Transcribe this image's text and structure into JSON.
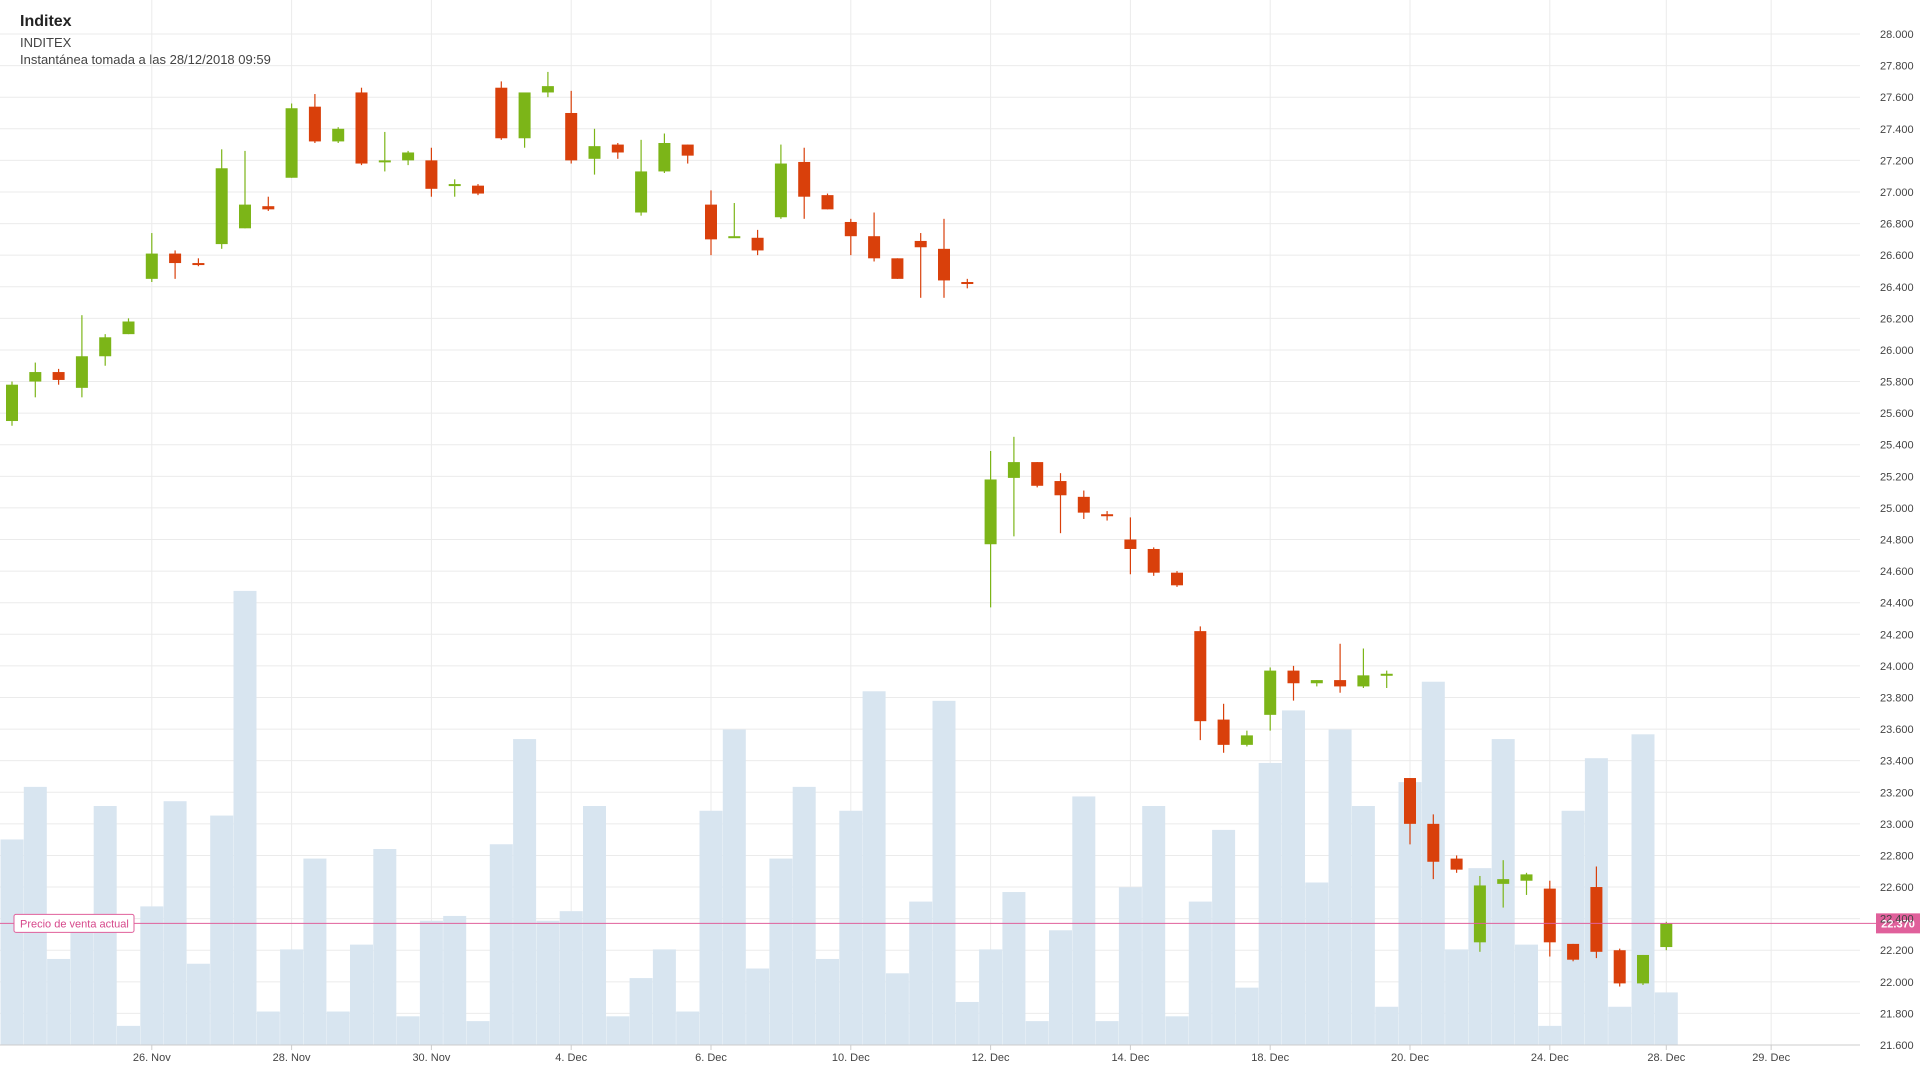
{
  "header": {
    "name": "Inditex",
    "symbol": "INDITEX",
    "snapshot": "Instantánea tomada a las 28/12/2018 09:59"
  },
  "colors": {
    "up": "#7cb518",
    "down": "#d9400b",
    "volume": "#d8e5f0",
    "grid": "#ebebeb",
    "current_price": "#e0609b"
  },
  "chart_data": {
    "type": "candlestick",
    "y_axis": {
      "min": 21.6,
      "max": 28.0,
      "ticks": [
        "28.000",
        "27.800",
        "27.600",
        "27.400",
        "27.200",
        "27.000",
        "26.800",
        "26.600",
        "26.400",
        "26.200",
        "26.000",
        "25.800",
        "25.600",
        "25.400",
        "25.200",
        "25.000",
        "24.800",
        "24.600",
        "24.400",
        "24.200",
        "24.000",
        "23.800",
        "23.600",
        "23.400",
        "23.200",
        "23.000",
        "22.800",
        "22.600",
        "22.400",
        "22.200",
        "22.000",
        "21.800",
        "21.600"
      ]
    },
    "x_axis": {
      "labels": [
        {
          "label": "26. Nov",
          "slot": 6
        },
        {
          "label": "28. Nov",
          "slot": 12
        },
        {
          "label": "30. Nov",
          "slot": 18
        },
        {
          "label": "4. Dec",
          "slot": 24
        },
        {
          "label": "6. Dec",
          "slot": 30
        },
        {
          "label": "10. Dec",
          "slot": 36
        },
        {
          "label": "12. Dec",
          "slot": 42
        },
        {
          "label": "14. Dec",
          "slot": 48
        },
        {
          "label": "18. Dec",
          "slot": 54
        },
        {
          "label": "20. Dec",
          "slot": 60
        },
        {
          "label": "24. Dec",
          "slot": 66
        },
        {
          "label": "28. Dec",
          "slot": 71
        },
        {
          "label": "29. Dec",
          "slot": 75.5
        }
      ]
    },
    "current_price": {
      "value": 22.37,
      "label": "22.370",
      "caption": "Precio de venta actual"
    },
    "volume_max": 1.0,
    "candles": [
      {
        "slot": 0,
        "o": 25.55,
        "h": 25.8,
        "l": 25.52,
        "c": 25.78
      },
      {
        "slot": 1,
        "o": 25.8,
        "h": 25.92,
        "l": 25.7,
        "c": 25.86
      },
      {
        "slot": 2,
        "o": 25.86,
        "h": 25.88,
        "l": 25.78,
        "c": 25.81
      },
      {
        "slot": 3,
        "o": 25.76,
        "h": 26.22,
        "l": 25.7,
        "c": 25.96
      },
      {
        "slot": 4,
        "o": 25.96,
        "h": 26.1,
        "l": 25.9,
        "c": 26.08
      },
      {
        "slot": 5,
        "o": 26.1,
        "h": 26.2,
        "l": 26.1,
        "c": 26.18
      },
      {
        "slot": 6,
        "o": 26.45,
        "h": 26.74,
        "l": 26.43,
        "c": 26.61
      },
      {
        "slot": 7,
        "o": 26.61,
        "h": 26.63,
        "l": 26.45,
        "c": 26.55
      },
      {
        "slot": 8,
        "o": 26.55,
        "h": 26.58,
        "l": 26.53,
        "c": 26.54
      },
      {
        "slot": 9,
        "o": 26.67,
        "h": 27.27,
        "l": 26.64,
        "c": 27.15
      },
      {
        "slot": 10,
        "o": 26.77,
        "h": 27.26,
        "l": 26.77,
        "c": 26.92
      },
      {
        "slot": 11,
        "o": 26.91,
        "h": 26.97,
        "l": 26.88,
        "c": 26.89
      },
      {
        "slot": 12,
        "o": 27.09,
        "h": 27.56,
        "l": 27.09,
        "c": 27.53
      },
      {
        "slot": 13,
        "o": 27.54,
        "h": 27.62,
        "l": 27.31,
        "c": 27.32
      },
      {
        "slot": 14,
        "o": 27.32,
        "h": 27.41,
        "l": 27.31,
        "c": 27.4
      },
      {
        "slot": 15,
        "o": 27.63,
        "h": 27.66,
        "l": 27.17,
        "c": 27.18
      },
      {
        "slot": 16,
        "o": 27.19,
        "h": 27.38,
        "l": 27.13,
        "c": 27.2
      },
      {
        "slot": 17,
        "o": 27.2,
        "h": 27.26,
        "l": 27.17,
        "c": 27.25
      },
      {
        "slot": 18,
        "o": 27.2,
        "h": 27.28,
        "l": 26.97,
        "c": 27.02
      },
      {
        "slot": 19,
        "o": 27.04,
        "h": 27.08,
        "l": 26.97,
        "c": 27.05
      },
      {
        "slot": 20,
        "o": 27.04,
        "h": 27.05,
        "l": 26.98,
        "c": 26.99
      },
      {
        "slot": 21,
        "o": 27.66,
        "h": 27.7,
        "l": 27.33,
        "c": 27.34
      },
      {
        "slot": 22,
        "o": 27.34,
        "h": 27.62,
        "l": 27.28,
        "c": 27.63
      },
      {
        "slot": 23,
        "o": 27.63,
        "h": 27.76,
        "l": 27.6,
        "c": 27.67
      },
      {
        "slot": 24,
        "o": 27.5,
        "h": 27.64,
        "l": 27.18,
        "c": 27.2
      },
      {
        "slot": 25,
        "o": 27.21,
        "h": 27.4,
        "l": 27.11,
        "c": 27.29
      },
      {
        "slot": 26,
        "o": 27.3,
        "h": 27.31,
        "l": 27.21,
        "c": 27.25
      },
      {
        "slot": 27,
        "o": 26.87,
        "h": 27.33,
        "l": 26.85,
        "c": 27.13
      },
      {
        "slot": 28,
        "o": 27.13,
        "h": 27.37,
        "l": 27.12,
        "c": 27.31
      },
      {
        "slot": 29,
        "o": 27.3,
        "h": 27.3,
        "l": 27.18,
        "c": 27.23
      },
      {
        "slot": 30,
        "o": 26.92,
        "h": 27.01,
        "l": 26.6,
        "c": 26.7
      },
      {
        "slot": 31,
        "o": 26.71,
        "h": 26.93,
        "l": 26.71,
        "c": 26.72
      },
      {
        "slot": 32,
        "o": 26.71,
        "h": 26.76,
        "l": 26.6,
        "c": 26.63
      },
      {
        "slot": 33,
        "o": 26.84,
        "h": 27.3,
        "l": 26.83,
        "c": 27.18
      },
      {
        "slot": 34,
        "o": 27.19,
        "h": 27.28,
        "l": 26.83,
        "c": 26.97
      },
      {
        "slot": 35,
        "o": 26.98,
        "h": 26.99,
        "l": 26.89,
        "c": 26.89
      },
      {
        "slot": 36,
        "o": 26.81,
        "h": 26.83,
        "l": 26.6,
        "c": 26.72
      },
      {
        "slot": 37,
        "o": 26.72,
        "h": 26.87,
        "l": 26.56,
        "c": 26.58
      },
      {
        "slot": 38,
        "o": 26.58,
        "h": 26.58,
        "l": 26.45,
        "c": 26.45
      },
      {
        "slot": 39,
        "o": 26.69,
        "h": 26.74,
        "l": 26.33,
        "c": 26.65
      },
      {
        "slot": 40,
        "o": 26.64,
        "h": 26.83,
        "l": 26.33,
        "c": 26.44
      },
      {
        "slot": 41,
        "o": 26.43,
        "h": 26.45,
        "l": 26.39,
        "c": 26.42
      },
      {
        "slot": 42,
        "o": 24.77,
        "h": 25.36,
        "l": 24.37,
        "c": 25.18
      },
      {
        "slot": 43,
        "o": 25.19,
        "h": 25.45,
        "l": 24.82,
        "c": 25.29
      },
      {
        "slot": 44,
        "o": 25.29,
        "h": 25.29,
        "l": 25.13,
        "c": 25.14
      },
      {
        "slot": 45,
        "o": 25.17,
        "h": 25.22,
        "l": 24.84,
        "c": 25.08
      },
      {
        "slot": 46,
        "o": 25.07,
        "h": 25.11,
        "l": 24.93,
        "c": 24.97
      },
      {
        "slot": 47,
        "o": 24.96,
        "h": 24.98,
        "l": 24.92,
        "c": 24.95
      },
      {
        "slot": 48,
        "o": 24.8,
        "h": 24.94,
        "l": 24.58,
        "c": 24.74
      },
      {
        "slot": 49,
        "o": 24.74,
        "h": 24.75,
        "l": 24.57,
        "c": 24.59
      },
      {
        "slot": 50,
        "o": 24.59,
        "h": 24.6,
        "l": 24.5,
        "c": 24.51
      },
      {
        "slot": 51,
        "o": 24.22,
        "h": 24.25,
        "l": 23.53,
        "c": 23.65
      },
      {
        "slot": 52,
        "o": 23.66,
        "h": 23.76,
        "l": 23.45,
        "c": 23.5
      },
      {
        "slot": 53,
        "o": 23.5,
        "h": 23.59,
        "l": 23.49,
        "c": 23.56
      },
      {
        "slot": 54,
        "o": 23.69,
        "h": 23.99,
        "l": 23.59,
        "c": 23.97
      },
      {
        "slot": 55,
        "o": 23.97,
        "h": 24.0,
        "l": 23.78,
        "c": 23.89
      },
      {
        "slot": 56,
        "o": 23.89,
        "h": 23.91,
        "l": 23.87,
        "c": 23.91
      },
      {
        "slot": 57,
        "o": 23.91,
        "h": 24.14,
        "l": 23.83,
        "c": 23.87
      },
      {
        "slot": 58,
        "o": 23.87,
        "h": 24.11,
        "l": 23.86,
        "c": 23.94
      },
      {
        "slot": 59,
        "o": 23.94,
        "h": 23.97,
        "l": 23.86,
        "c": 23.95
      },
      {
        "slot": 60,
        "o": 23.29,
        "h": 23.29,
        "l": 22.87,
        "c": 23.0
      },
      {
        "slot": 61,
        "o": 23.0,
        "h": 23.06,
        "l": 22.65,
        "c": 22.76
      },
      {
        "slot": 62,
        "o": 22.78,
        "h": 22.8,
        "l": 22.69,
        "c": 22.71
      },
      {
        "slot": 63,
        "o": 22.25,
        "h": 22.67,
        "l": 22.19,
        "c": 22.61
      },
      {
        "slot": 64,
        "o": 22.62,
        "h": 22.77,
        "l": 22.47,
        "c": 22.65
      },
      {
        "slot": 65,
        "o": 22.64,
        "h": 22.69,
        "l": 22.55,
        "c": 22.68
      },
      {
        "slot": 66,
        "o": 22.59,
        "h": 22.64,
        "l": 22.16,
        "c": 22.25
      },
      {
        "slot": 67,
        "o": 22.24,
        "h": 22.24,
        "l": 22.13,
        "c": 22.14
      },
      {
        "slot": 68,
        "o": 22.6,
        "h": 22.73,
        "l": 22.15,
        "c": 22.19
      },
      {
        "slot": 69,
        "o": 22.2,
        "h": 22.21,
        "l": 21.97,
        "c": 21.99
      },
      {
        "slot": 70,
        "o": 21.99,
        "h": 22.17,
        "l": 21.98,
        "c": 22.17
      },
      {
        "slot": 71,
        "o": 22.22,
        "h": 22.38,
        "l": 22.2,
        "c": 22.37
      }
    ],
    "volume": [
      0.43,
      0.54,
      0.18,
      0.27,
      0.5,
      0.04,
      0.29,
      0.51,
      0.17,
      0.48,
      0.95,
      0.07,
      0.2,
      0.39,
      0.07,
      0.21,
      0.41,
      0.06,
      0.26,
      0.27,
      0.05,
      0.42,
      0.64,
      0.26,
      0.28,
      0.5,
      0.06,
      0.14,
      0.2,
      0.07,
      0.49,
      0.66,
      0.16,
      0.39,
      0.54,
      0.18,
      0.49,
      0.74,
      0.15,
      0.3,
      0.72,
      0.09,
      0.2,
      0.32,
      0.05,
      0.24,
      0.52,
      0.05,
      0.33,
      0.5,
      0.06,
      0.3,
      0.45,
      0.12,
      0.59,
      0.7,
      0.34,
      0.66,
      0.5,
      0.08,
      0.55,
      0.76,
      0.2,
      0.37,
      0.64,
      0.21,
      0.04,
      0.49,
      0.6,
      0.08,
      0.65,
      0.11
    ]
  }
}
